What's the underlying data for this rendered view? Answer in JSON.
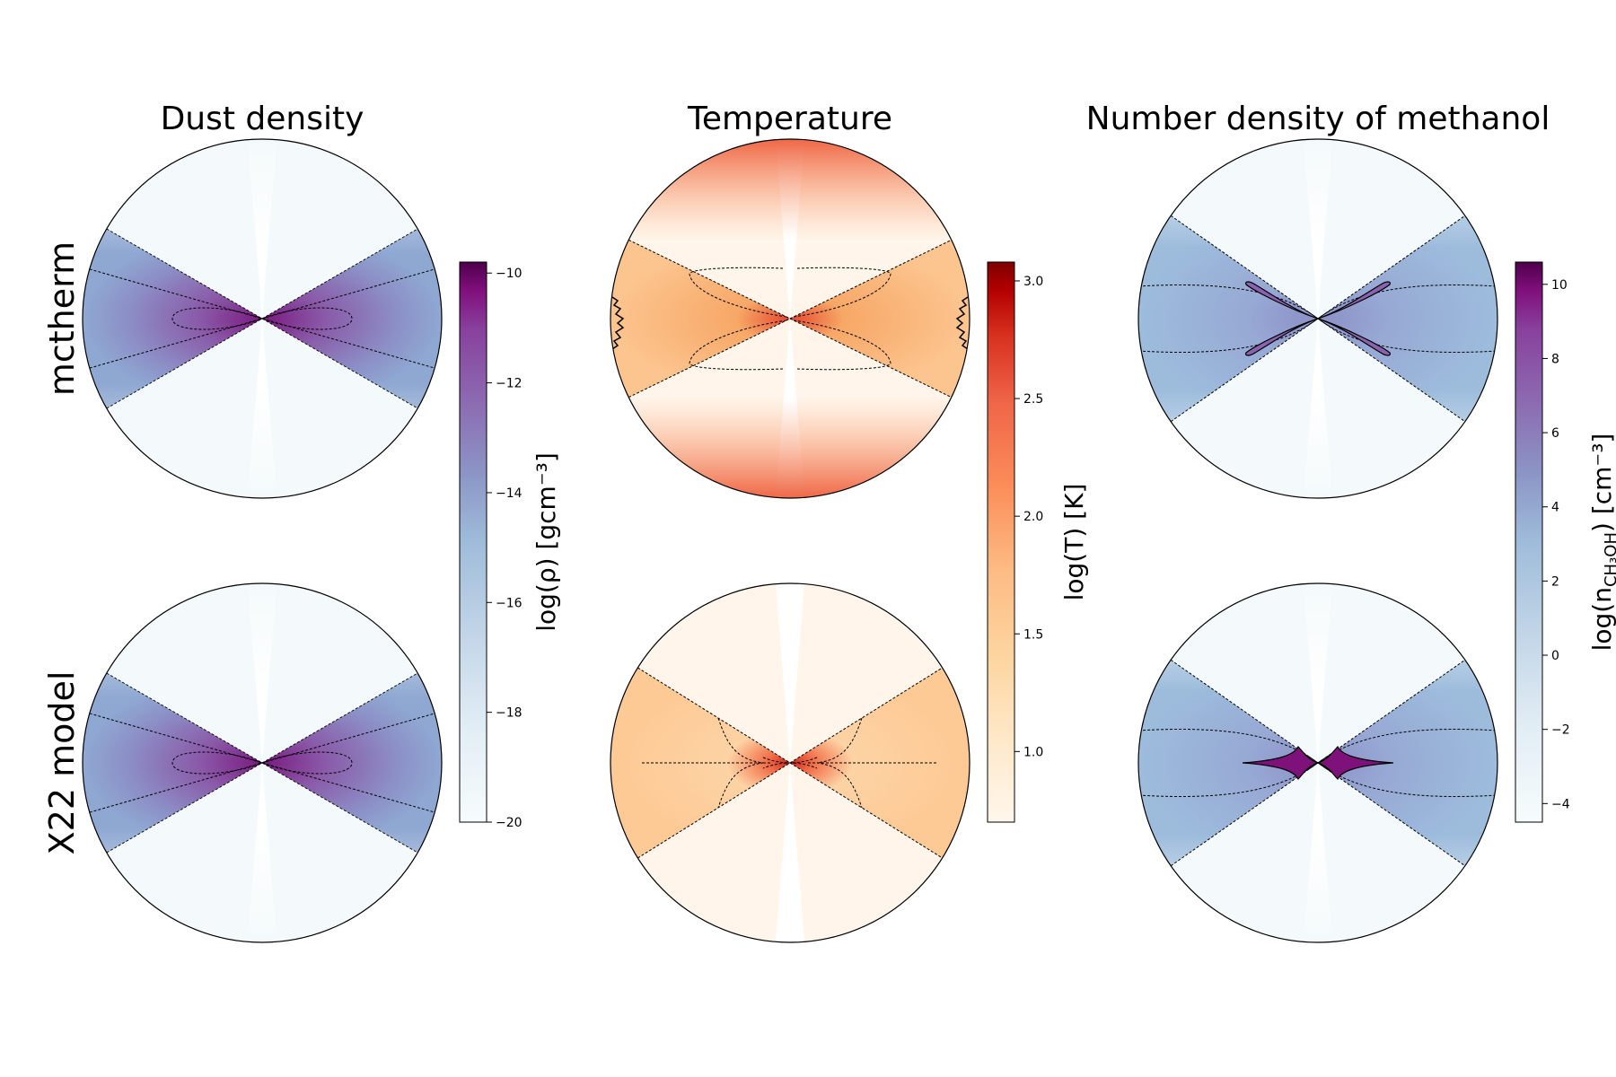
{
  "figure": {
    "row_labels": [
      "mctherm",
      "X22 model"
    ]
  },
  "chart_data": [
    {
      "type": "heatmap",
      "title": "Dust density",
      "colormap": "BuPu",
      "colorbar": {
        "label": "log(ρ) [gcm⁻³]",
        "range": [
          -20,
          -9.8
        ],
        "ticks": [
          "−10",
          "−12",
          "−14",
          "−16",
          "−18",
          "−20"
        ],
        "tick_values": [
          -10,
          -12,
          -14,
          -16,
          -18,
          -20
        ]
      },
      "panels": [
        "mctherm",
        "X22 model"
      ]
    },
    {
      "type": "heatmap",
      "title": "Temperature",
      "colormap": "OrRd",
      "colorbar": {
        "label": "log(T) [K]",
        "range": [
          0.7,
          3.08
        ],
        "ticks": [
          "3.0",
          "2.5",
          "2.0",
          "1.5",
          "1.0"
        ],
        "tick_values": [
          3.0,
          2.5,
          2.0,
          1.5,
          1.0
        ]
      },
      "panels": [
        "mctherm",
        "X22 model"
      ]
    },
    {
      "type": "heatmap",
      "title": "Number density of methanol",
      "colormap": "BuPu",
      "colorbar": {
        "label": "log(n",
        "label_sub": "CH₃OH",
        "label_tail": ") [cm⁻³]",
        "range": [
          -4.5,
          10.6
        ],
        "ticks": [
          "10",
          "8",
          "6",
          "4",
          "2",
          "0",
          "−2",
          "−4"
        ],
        "tick_values": [
          10,
          8,
          6,
          4,
          2,
          0,
          -2,
          -4
        ]
      },
      "panels": [
        "mctherm",
        "X22 model"
      ]
    }
  ]
}
